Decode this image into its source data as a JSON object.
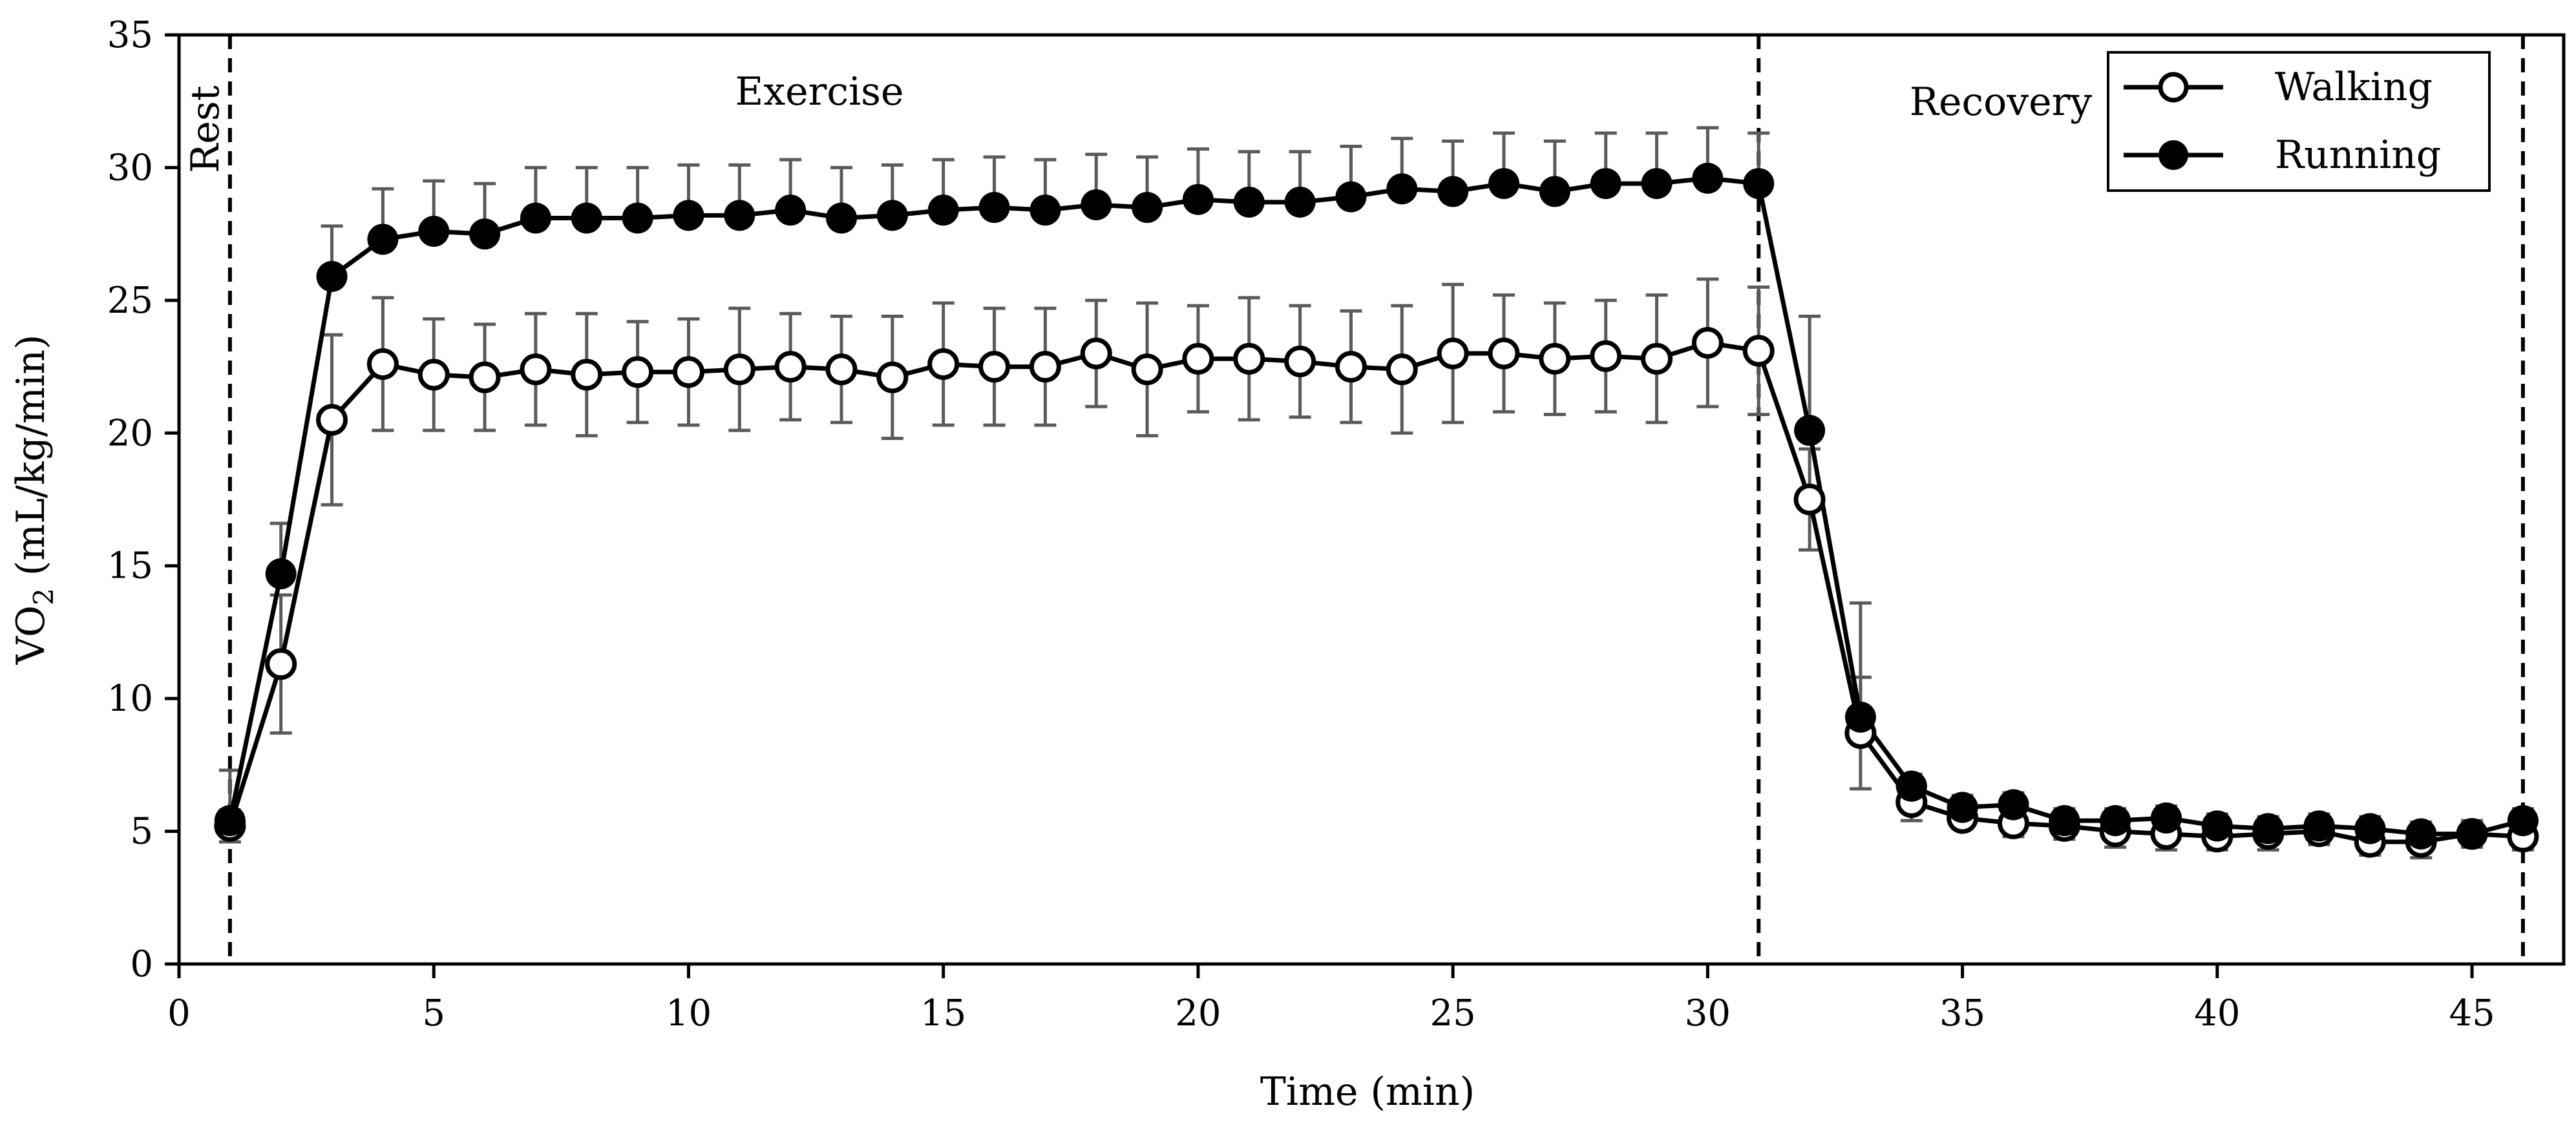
{
  "chart_data": {
    "type": "line",
    "title": "",
    "xlabel": "Time (min)",
    "ylabel": {
      "main": "VO",
      "subscript": "2",
      "unit": " (mL/kg/min)"
    },
    "xlim": [
      0,
      46.8
    ],
    "ylim": [
      0,
      35
    ],
    "x_ticks": [
      0,
      5,
      10,
      15,
      20,
      25,
      30,
      35,
      40,
      45
    ],
    "y_ticks": [
      0,
      5,
      10,
      15,
      20,
      25,
      30,
      35
    ],
    "grid": false,
    "legend_position": "top-right",
    "phases": [
      {
        "label": "Rest",
        "x": 1,
        "orientation": "vertical"
      },
      {
        "label": "Exercise",
        "x": 1,
        "orientation": "horizontal"
      },
      {
        "label": "Recovery",
        "x": 31,
        "orientation": "horizontal"
      }
    ],
    "phase_boundaries": [
      1,
      31,
      46
    ],
    "x": [
      1,
      2,
      3,
      4,
      5,
      6,
      7,
      8,
      9,
      10,
      11,
      12,
      13,
      14,
      15,
      16,
      17,
      18,
      19,
      20,
      21,
      22,
      23,
      24,
      25,
      26,
      27,
      28,
      29,
      30,
      31,
      32,
      33,
      34,
      35,
      36,
      37,
      38,
      39,
      40,
      41,
      42,
      43,
      44,
      45,
      46
    ],
    "series": [
      {
        "name": "Walking",
        "marker": "open-circle",
        "values": [
          5.2,
          11.3,
          20.5,
          22.6,
          22.2,
          22.1,
          22.4,
          22.2,
          22.3,
          22.3,
          22.4,
          22.5,
          22.4,
          22.1,
          22.6,
          22.5,
          22.5,
          23.0,
          22.4,
          22.8,
          22.8,
          22.7,
          22.5,
          22.4,
          23.0,
          23.0,
          22.8,
          22.9,
          22.8,
          23.4,
          23.1,
          17.5,
          8.7,
          6.1,
          5.5,
          5.3,
          5.2,
          5.0,
          4.9,
          4.8,
          4.9,
          5.0,
          4.6,
          4.6,
          4.9,
          4.8
        ],
        "errors": [
          0.6,
          2.6,
          3.2,
          2.5,
          2.1,
          2.0,
          2.1,
          2.3,
          1.9,
          2.0,
          2.3,
          2.0,
          2.0,
          2.3,
          2.3,
          2.2,
          2.2,
          2.0,
          2.5,
          2.0,
          2.3,
          2.1,
          2.1,
          2.4,
          2.6,
          2.2,
          2.1,
          2.1,
          2.4,
          2.4,
          2.4,
          1.9,
          2.1,
          0.7,
          0.4,
          0.5,
          0.5,
          0.6,
          0.6,
          0.5,
          0.6,
          0.5,
          0.5,
          0.6,
          0.5,
          0.5
        ]
      },
      {
        "name": "Running",
        "marker": "filled-circle",
        "values": [
          5.4,
          14.7,
          25.9,
          27.3,
          27.6,
          27.5,
          28.1,
          28.1,
          28.1,
          28.2,
          28.2,
          28.4,
          28.1,
          28.2,
          28.4,
          28.5,
          28.4,
          28.6,
          28.5,
          28.8,
          28.7,
          28.7,
          28.9,
          29.2,
          29.1,
          29.4,
          29.1,
          29.4,
          29.4,
          29.6,
          29.4,
          20.1,
          9.3,
          6.7,
          5.9,
          6.0,
          5.4,
          5.4,
          5.5,
          5.2,
          5.1,
          5.2,
          5.1,
          4.9,
          4.9,
          5.4
        ]
      }
    ]
  }
}
